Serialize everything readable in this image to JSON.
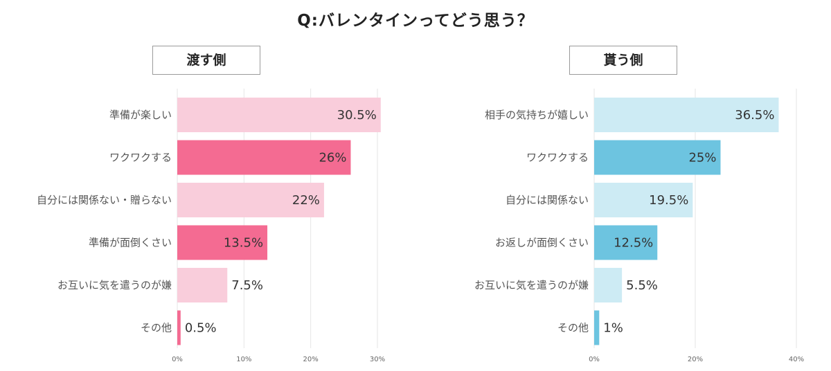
{
  "title": "Q:バレンタインってどう思う？",
  "chart_data": [
    {
      "type": "bar",
      "orientation": "horizontal",
      "title": "渡す側",
      "categories": [
        "準備が楽しい",
        "ワクワクする",
        "自分には関係ない・贈らない",
        "準備が面倒くさい",
        "お互いに気を遣うのが嫌",
        "その他"
      ],
      "values": [
        30.5,
        26,
        22,
        13.5,
        7.5,
        0.5
      ],
      "value_labels": [
        "30.5%",
        "26%",
        "22%",
        "13.5%",
        "7.5%",
        "0.5%"
      ],
      "bar_colors": [
        "#f9cddb",
        "#f46b92",
        "#f9cddb",
        "#f46b92",
        "#f9cddb",
        "#f46b92"
      ],
      "xlim": [
        0,
        31
      ],
      "ticks": [
        0,
        10,
        20,
        30
      ],
      "tick_labels": [
        "0%",
        "10%",
        "20%",
        "30%"
      ],
      "grid": true
    },
    {
      "type": "bar",
      "orientation": "horizontal",
      "title": "貰う側",
      "categories": [
        "相手の気持ちが嬉しい",
        "ワクワクする",
        "自分には関係ない",
        "お返しが面倒くさい",
        "お互いに気を遣うのが嫌",
        "その他"
      ],
      "values": [
        36.5,
        25,
        19.5,
        12.5,
        5.5,
        1
      ],
      "value_labels": [
        "36.5%",
        "25%",
        "19.5%",
        "12.5%",
        "5.5%",
        "1%"
      ],
      "bar_colors": [
        "#cdebf4",
        "#6dc4e0",
        "#cdebf4",
        "#6dc4e0",
        "#cdebf4",
        "#6dc4e0"
      ],
      "xlim": [
        0,
        40
      ],
      "ticks": [
        0,
        20,
        40
      ],
      "tick_labels": [
        "0%",
        "20%",
        "40%"
      ],
      "grid": true
    }
  ]
}
